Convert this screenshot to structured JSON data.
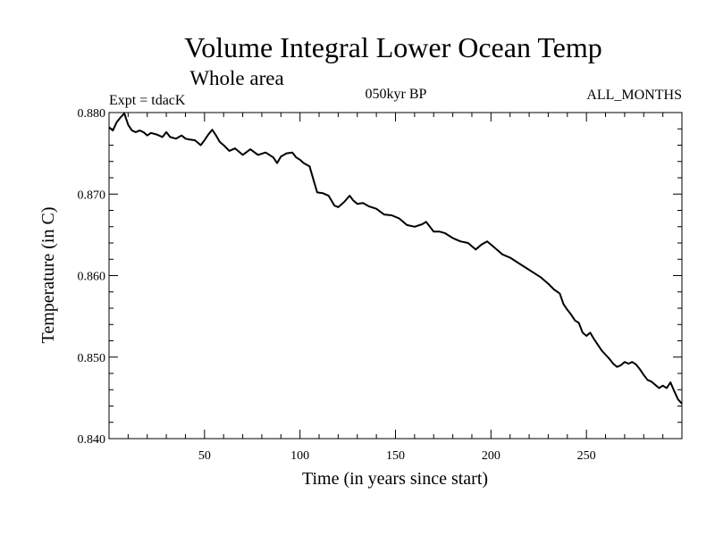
{
  "chart_data": {
    "type": "line",
    "title": "Volume Integral Lower Ocean Temp",
    "subtitle": "Whole area",
    "experiment_label": "Expt = tdacK",
    "period_label": "050kyr BP",
    "months_label": "ALL_MONTHS",
    "xlabel": "Time (in years since start)",
    "ylabel": "Temperature (in C)",
    "xlim": [
      0,
      300
    ],
    "ylim": [
      0.84,
      0.88
    ],
    "x_ticks": [
      50,
      100,
      150,
      200,
      250
    ],
    "x_tick_labels": [
      "50",
      "100",
      "150",
      "200",
      "250"
    ],
    "y_ticks": [
      0.84,
      0.85,
      0.86,
      0.87,
      0.88
    ],
    "y_tick_labels": [
      "0.840",
      "0.850",
      "0.860",
      "0.870",
      "0.880"
    ],
    "series": [
      {
        "name": "Volume Integral Lower Ocean Temp",
        "color": "#000000",
        "x": [
          0,
          2,
          4,
          6,
          8,
          10,
          12,
          14,
          16,
          18,
          20,
          22,
          25,
          28,
          30,
          32,
          35,
          38,
          40,
          42,
          45,
          48,
          50,
          52,
          54,
          56,
          58,
          60,
          63,
          66,
          70,
          74,
          78,
          82,
          86,
          88,
          90,
          93,
          96,
          98,
          100,
          102,
          105,
          107,
          109,
          112,
          115,
          118,
          120,
          123,
          126,
          128,
          130,
          133,
          136,
          140,
          144,
          148,
          152,
          156,
          160,
          164,
          166,
          168,
          170,
          173,
          176,
          180,
          184,
          188,
          192,
          195,
          198,
          200,
          203,
          206,
          210,
          214,
          218,
          222,
          226,
          230,
          233,
          236,
          238,
          240,
          242,
          244,
          246,
          248,
          250,
          252,
          254,
          256,
          258,
          260,
          262,
          264,
          266,
          268,
          270,
          272,
          274,
          276,
          278,
          280,
          282,
          284,
          286,
          288,
          290,
          292,
          294,
          296,
          298,
          300
        ],
        "values": [
          0.8782,
          0.8778,
          0.8788,
          0.8794,
          0.8799,
          0.8785,
          0.8778,
          0.8776,
          0.8778,
          0.8776,
          0.8772,
          0.8775,
          0.8773,
          0.877,
          0.8776,
          0.877,
          0.8768,
          0.8772,
          0.8768,
          0.8767,
          0.8766,
          0.876,
          0.8766,
          0.8773,
          0.8779,
          0.8772,
          0.8764,
          0.876,
          0.8753,
          0.8756,
          0.8748,
          0.8755,
          0.8748,
          0.8751,
          0.8745,
          0.8738,
          0.8746,
          0.875,
          0.8751,
          0.8745,
          0.8742,
          0.8738,
          0.8734,
          0.8718,
          0.8702,
          0.8701,
          0.8698,
          0.8686,
          0.8684,
          0.869,
          0.8698,
          0.8692,
          0.8688,
          0.8689,
          0.8685,
          0.8682,
          0.8675,
          0.8674,
          0.867,
          0.8662,
          0.866,
          0.8663,
          0.8666,
          0.866,
          0.8654,
          0.8654,
          0.8652,
          0.8646,
          0.8642,
          0.864,
          0.8632,
          0.8638,
          0.8642,
          0.8638,
          0.8632,
          0.8626,
          0.8622,
          0.8616,
          0.861,
          0.8604,
          0.8598,
          0.859,
          0.8583,
          0.8578,
          0.8565,
          0.8558,
          0.8552,
          0.8545,
          0.8542,
          0.853,
          0.8526,
          0.853,
          0.8522,
          0.8515,
          0.8508,
          0.8503,
          0.8498,
          0.8492,
          0.8488,
          0.849,
          0.8494,
          0.8492,
          0.8494,
          0.8491,
          0.8485,
          0.8478,
          0.8472,
          0.847,
          0.8466,
          0.8462,
          0.8465,
          0.8462,
          0.8469,
          0.8458,
          0.8448,
          0.8443
        ]
      }
    ]
  }
}
